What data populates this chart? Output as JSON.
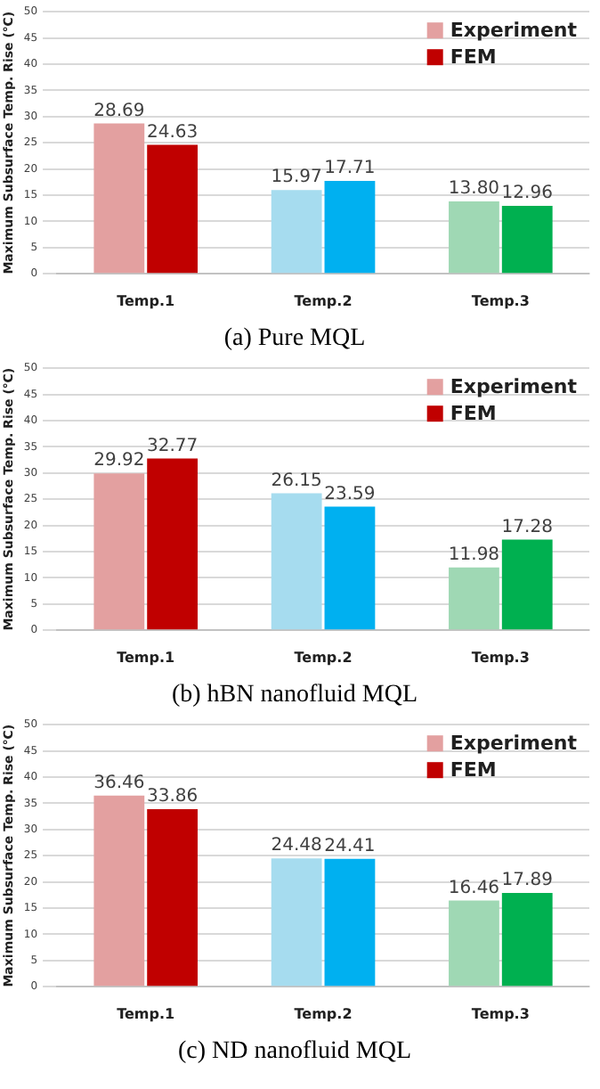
{
  "chart_data": [
    {
      "type": "bar",
      "title": "(a) Pure MQL",
      "ylabel": "Maximum Subsurface Temp. Rise (℃)",
      "categories": [
        "Temp.1",
        "Temp.2",
        "Temp.3"
      ],
      "ylim": [
        0,
        50
      ],
      "yticks": [
        0,
        5,
        10,
        15,
        20,
        25,
        30,
        35,
        40,
        45,
        50
      ],
      "grid": "y",
      "legend": "top right",
      "series": [
        {
          "name": "Experiment",
          "color": "#e3a0a0",
          "colors": [
            "#e3a0a0",
            "#a6dcef",
            "#9fd8b4"
          ],
          "values": [
            28.69,
            15.97,
            13.8
          ],
          "value_labels": [
            "28.69",
            "15.97",
            "13.80"
          ]
        },
        {
          "name": "FEM",
          "color": "#c00000",
          "colors": [
            "#c00000",
            "#00b0f0",
            "#00b050"
          ],
          "values": [
            24.63,
            17.71,
            12.96
          ],
          "value_labels": [
            "24.63",
            "17.71",
            "12.96"
          ]
        }
      ]
    },
    {
      "type": "bar",
      "title": "(b) hBN nanofluid MQL",
      "ylabel": "Maximum Subsurface Temp. Rise (℃)",
      "categories": [
        "Temp.1",
        "Temp.2",
        "Temp.3"
      ],
      "ylim": [
        0,
        50
      ],
      "yticks": [
        0,
        5,
        10,
        15,
        20,
        25,
        30,
        35,
        40,
        45,
        50
      ],
      "grid": "y",
      "legend": "top right",
      "series": [
        {
          "name": "Experiment",
          "color": "#e3a0a0",
          "colors": [
            "#e3a0a0",
            "#a6dcef",
            "#9fd8b4"
          ],
          "values": [
            29.92,
            26.15,
            11.98
          ],
          "value_labels": [
            "29.92",
            "26.15",
            "11.98"
          ]
        },
        {
          "name": "FEM",
          "color": "#c00000",
          "colors": [
            "#c00000",
            "#00b0f0",
            "#00b050"
          ],
          "values": [
            32.77,
            23.59,
            17.28
          ],
          "value_labels": [
            "32.77",
            "23.59",
            "17.28"
          ]
        }
      ]
    },
    {
      "type": "bar",
      "title": "(c) ND nanofluid MQL",
      "ylabel": "Maximum Subsurface Temp. Rise (℃)",
      "categories": [
        "Temp.1",
        "Temp.2",
        "Temp.3"
      ],
      "ylim": [
        0,
        50
      ],
      "yticks": [
        0,
        5,
        10,
        15,
        20,
        25,
        30,
        35,
        40,
        45,
        50
      ],
      "grid": "y",
      "legend": "top right",
      "series": [
        {
          "name": "Experiment",
          "color": "#e3a0a0",
          "colors": [
            "#e3a0a0",
            "#a6dcef",
            "#9fd8b4"
          ],
          "values": [
            36.46,
            24.48,
            16.46
          ],
          "value_labels": [
            "36.46",
            "24.48",
            "16.46"
          ]
        },
        {
          "name": "FEM",
          "color": "#c00000",
          "colors": [
            "#c00000",
            "#00b0f0",
            "#00b050"
          ],
          "values": [
            33.86,
            24.41,
            17.89
          ],
          "value_labels": [
            "33.86",
            "24.41",
            "17.89"
          ]
        }
      ]
    }
  ]
}
